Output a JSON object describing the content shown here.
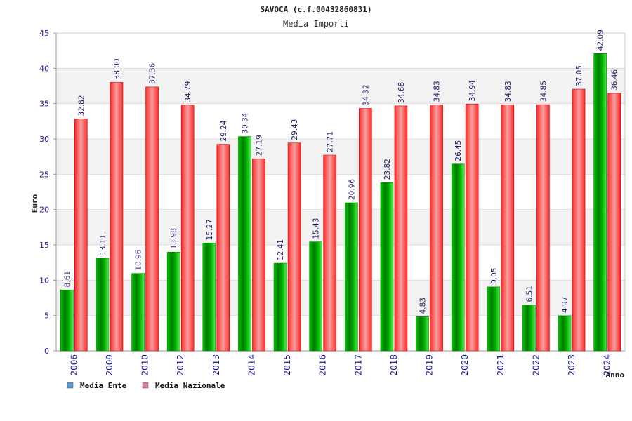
{
  "chart_data": {
    "type": "bar",
    "title": "SAVOCA (c.f.00432860831)",
    "subtitle": "Media Importi",
    "xlabel": "Anno",
    "ylabel": "Euro",
    "ylim": [
      0,
      45
    ],
    "yticks": [
      0,
      5,
      10,
      15,
      20,
      25,
      30,
      35,
      40,
      45
    ],
    "grid": true,
    "legend_position": "bottom-left",
    "categories": [
      "2006",
      "2009",
      "2010",
      "2012",
      "2013",
      "2014",
      "2015",
      "2016",
      "2017",
      "2018",
      "2019",
      "2020",
      "2021",
      "2022",
      "2023",
      "2024"
    ],
    "series": [
      {
        "name": "Media Ente",
        "values": [
          8.61,
          13.11,
          10.96,
          13.98,
          15.27,
          30.34,
          12.41,
          15.43,
          20.96,
          23.82,
          4.83,
          26.45,
          9.05,
          6.51,
          4.97,
          42.09
        ],
        "labels": [
          "8.61",
          "13.11",
          "10.96",
          "13.98",
          "15.27",
          "30.34",
          "12.41",
          "15.43",
          "20.96",
          "23.82",
          "4.83",
          "26.45",
          "9.05",
          "6.51",
          "4.97",
          "42.09"
        ],
        "color": "#00aa00",
        "legend_color": "#5b9bd5"
      },
      {
        "name": "Media Nazionale",
        "values": [
          32.82,
          38.0,
          37.36,
          34.79,
          29.24,
          27.19,
          29.43,
          27.71,
          34.32,
          34.68,
          34.83,
          34.94,
          34.83,
          34.85,
          37.05,
          36.46
        ],
        "labels": [
          "32.82",
          "38.00",
          "37.36",
          "34.79",
          "29.24",
          "27.19",
          "29.43",
          "27.71",
          "34.32",
          "34.68",
          "34.83",
          "34.94",
          "34.83",
          "34.85",
          "37.05",
          "36.46"
        ],
        "color": "#ee1c25",
        "legend_color": "#e377a9"
      }
    ]
  }
}
